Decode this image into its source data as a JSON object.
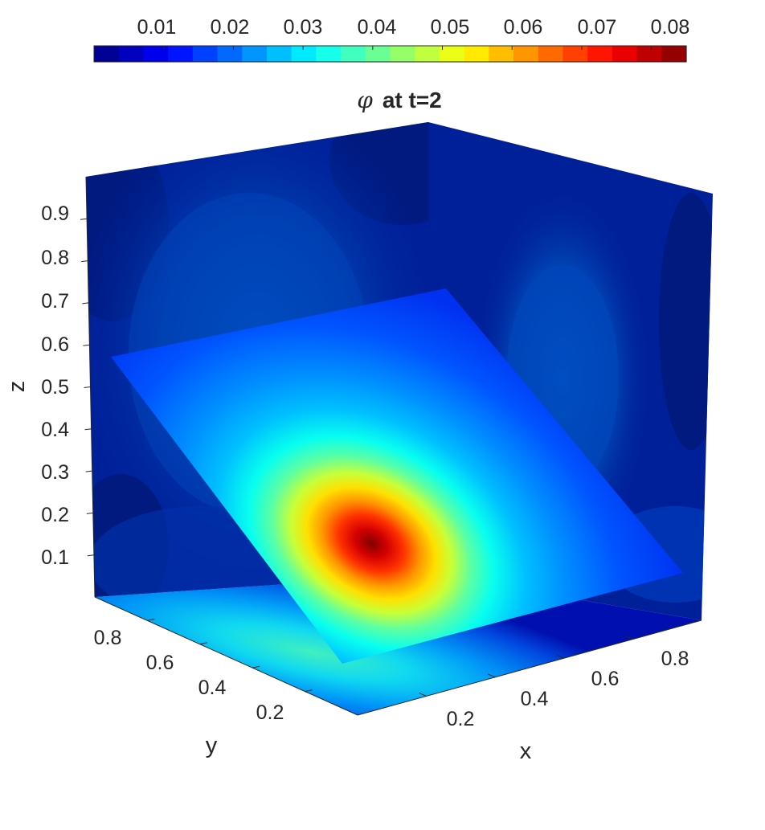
{
  "chart_data": {
    "type": "heatmap",
    "subtype": "3d-slice-contour",
    "title_symbol": "φ",
    "title_rest": "at  t=2",
    "xlabel": "x",
    "ylabel": "y",
    "zlabel": "z",
    "xlim": [
      0,
      1
    ],
    "ylim": [
      0,
      1
    ],
    "zlim": [
      0,
      1
    ],
    "x_ticks": [
      "0.2",
      "0.4",
      "0.6",
      "0.8"
    ],
    "y_ticks": [
      "0.2",
      "0.4",
      "0.6",
      "0.8"
    ],
    "z_ticks": [
      "0.1",
      "0.2",
      "0.3",
      "0.4",
      "0.5",
      "0.6",
      "0.7",
      "0.8",
      "0.9"
    ],
    "colorbar": {
      "colormap": "jet",
      "location": "top",
      "range": [
        0,
        0.085
      ],
      "levels": 24,
      "tick_labels": [
        "0.01",
        "0.02",
        "0.03",
        "0.04",
        "0.05",
        "0.06",
        "0.07",
        "0.08"
      ]
    },
    "peak": {
      "value": 0.083,
      "x": 0.3,
      "y": 0.5,
      "z": 0.3
    },
    "slices": [
      "back wall y=1",
      "side wall x=1",
      "floor z=0",
      "oblique plane"
    ]
  }
}
